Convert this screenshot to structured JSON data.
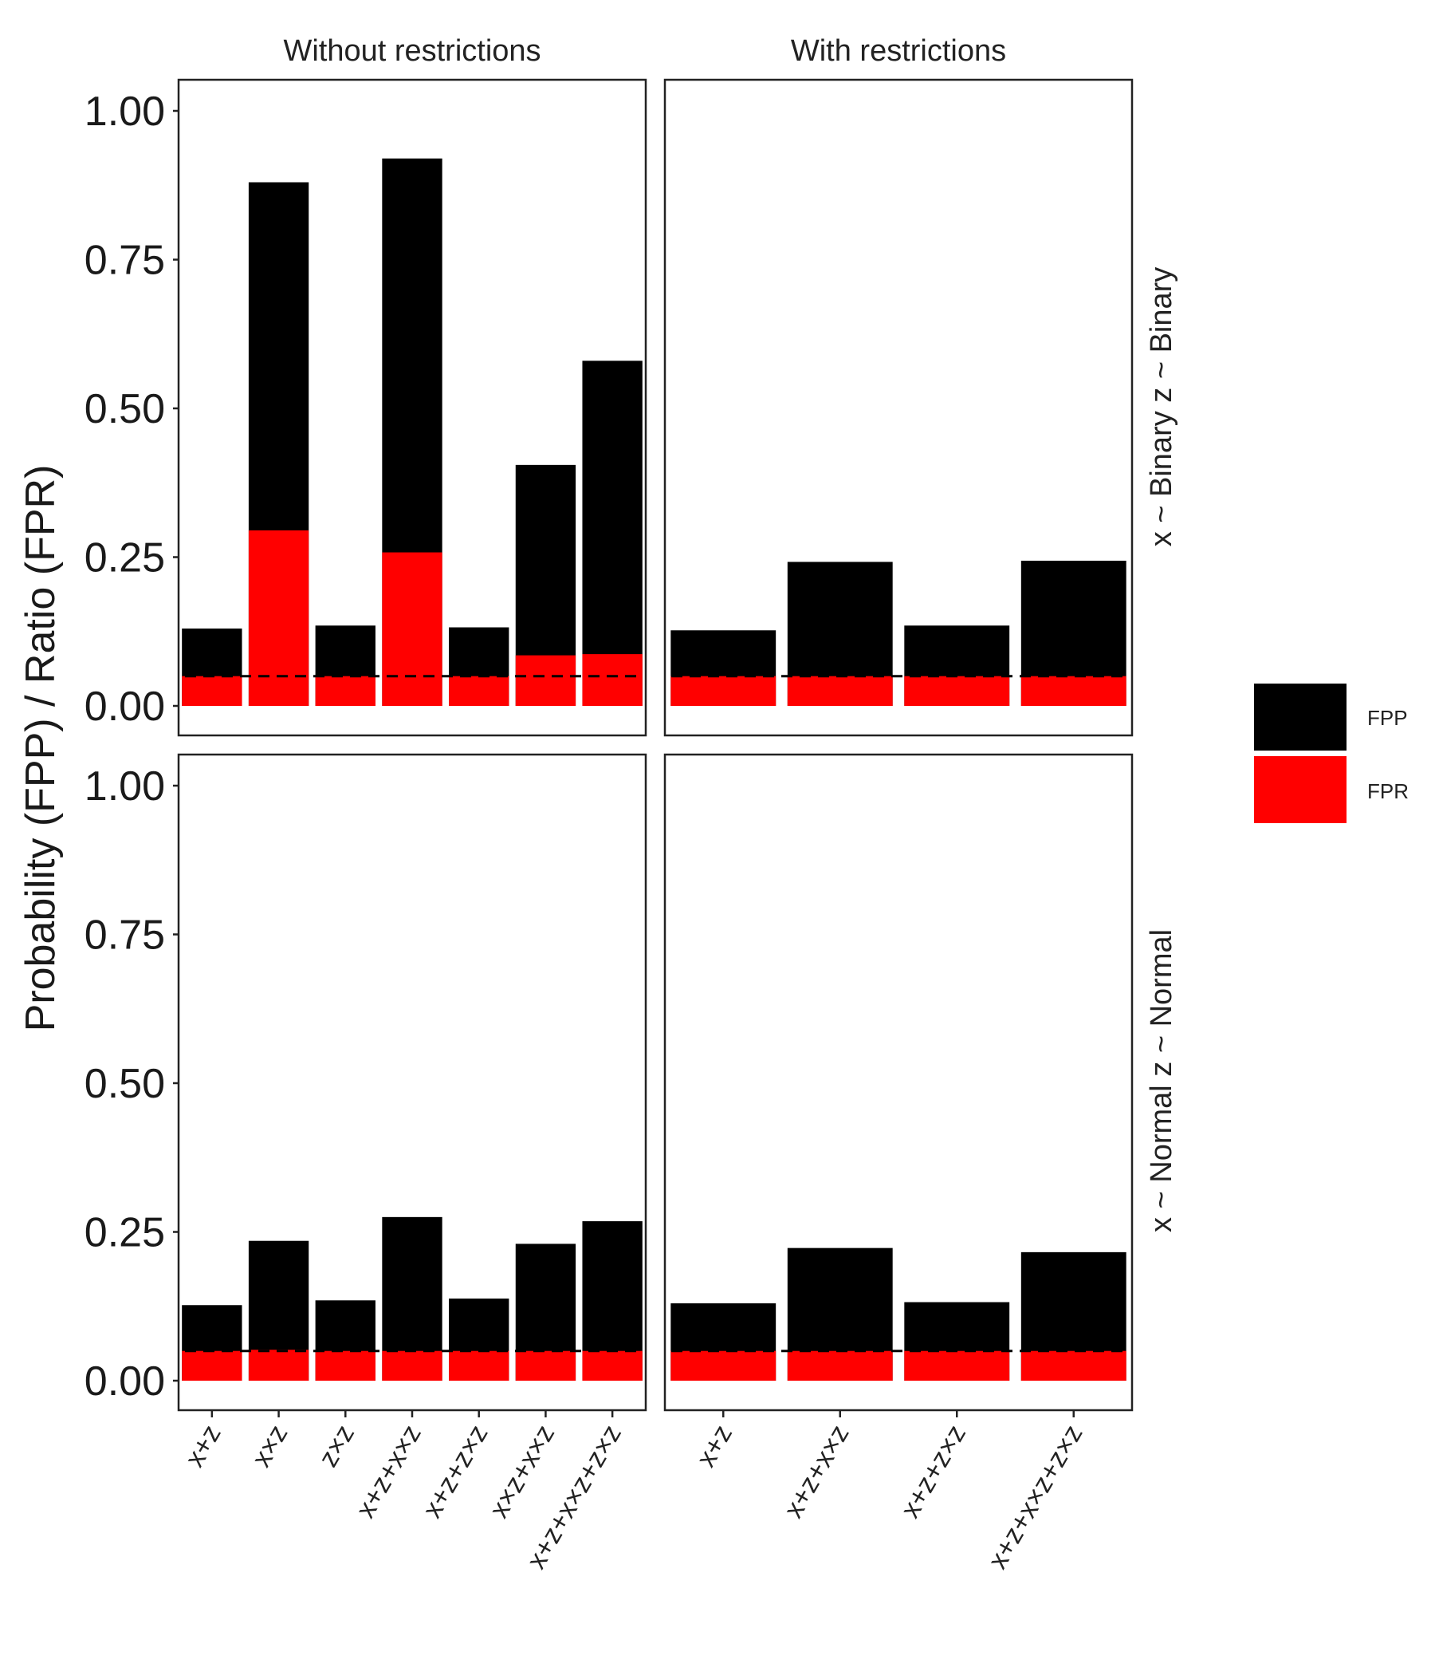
{
  "chart_data": {
    "type": "bar",
    "ylabel": "Probability (FPP) / Ratio (FPR)",
    "ylim": [
      0,
      1
    ],
    "yticks": [
      "0.00",
      "0.25",
      "0.50",
      "0.75",
      "1.00"
    ],
    "reference_line": 0.05,
    "columns": [
      "Without restrictions",
      "With restrictions"
    ],
    "rows": [
      "x ~ Binary z ~ Binary",
      "x ~ Normal z ~ Normal"
    ],
    "categories": {
      "without": [
        "x+z",
        "x×z",
        "z×z",
        "x+z+x×z",
        "x+z+z×z",
        "x×z+x×z",
        "x+z+x×z+z×z"
      ],
      "with": [
        "x+z",
        "x+z+x×z",
        "x+z+z×z",
        "x+z+x×z+z×z"
      ]
    },
    "legend": [
      {
        "label": "FPP",
        "color": "#000000"
      },
      {
        "label": "FPR",
        "color": "#ff0000"
      }
    ],
    "panels": [
      {
        "row": 0,
        "col": 0,
        "fpp": [
          0.13,
          0.88,
          0.135,
          0.92,
          0.132,
          0.405,
          0.58
        ],
        "fpr": [
          0.05,
          0.295,
          0.05,
          0.258,
          0.05,
          0.085,
          0.087
        ]
      },
      {
        "row": 0,
        "col": 1,
        "fpp": [
          0.127,
          0.242,
          0.135,
          0.244
        ],
        "fpr": [
          0.05,
          0.05,
          0.05,
          0.05
        ]
      },
      {
        "row": 1,
        "col": 0,
        "fpp": [
          0.127,
          0.235,
          0.135,
          0.275,
          0.138,
          0.23,
          0.268
        ],
        "fpr": [
          0.05,
          0.052,
          0.05,
          0.05,
          0.05,
          0.05,
          0.05
        ]
      },
      {
        "row": 1,
        "col": 1,
        "fpp": [
          0.13,
          0.223,
          0.132,
          0.216
        ],
        "fpr": [
          0.05,
          0.05,
          0.05,
          0.05
        ]
      }
    ]
  }
}
